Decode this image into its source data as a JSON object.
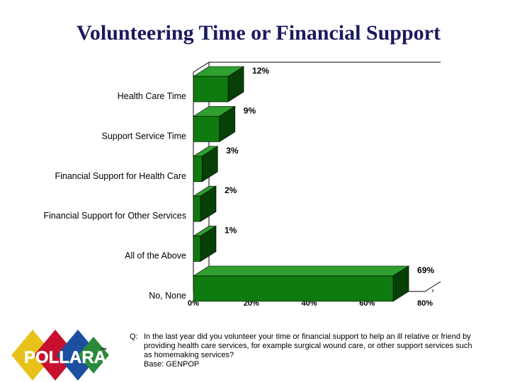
{
  "chart_data": {
    "type": "bar",
    "orientation": "horizontal",
    "style": "3d",
    "title": "Volunteering Time or Financial Support",
    "categories": [
      "Health Care Time",
      "Support Service Time",
      "Financial Support for Health Care",
      "Financial Support for Other Services",
      "All of the Above",
      "No, None"
    ],
    "values": [
      12,
      9,
      3,
      2,
      1,
      69
    ],
    "data_labels": [
      "12%",
      "9%",
      "3%",
      "2%",
      "1%",
      "69%"
    ],
    "xlim": [
      0,
      80
    ],
    "x_ticks": [
      0,
      20,
      40,
      60,
      80
    ],
    "x_tick_labels": [
      "0%",
      "20%",
      "40%",
      "60%",
      "80%"
    ],
    "bar_color": "#0f7a0f",
    "bar_top_color": "#2f9f2f",
    "bar_side_color": "#064006",
    "grid": false,
    "legend": "none"
  },
  "footnote": {
    "q_label": "Q:",
    "question": "In the last year did you volunteer your time or financial support to help an ill relative or friend by providing health care services, for example surgical wound care, or other support services such as homemaking services?",
    "base": "Base: GENPOP"
  },
  "logo": {
    "text": "POLLARA",
    "tm": "™",
    "colors": [
      "#e8c21a",
      "#c8102e",
      "#1b4fa0",
      "#2a8a3a"
    ],
    "icon": "pollara-diamond-logo"
  }
}
